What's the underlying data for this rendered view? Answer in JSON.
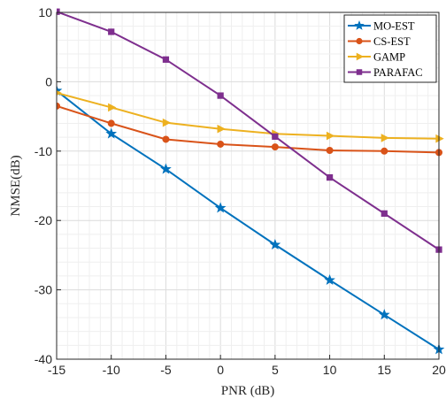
{
  "chart_data": {
    "type": "line",
    "title": "",
    "xlabel": "PNR (dB)",
    "ylabel": "NMSE(dB)",
    "xlim": [
      -15,
      20
    ],
    "ylim": [
      -40,
      10
    ],
    "x_ticks": [
      "-15",
      "-10",
      "-5",
      "0",
      "5",
      "10",
      "15",
      "20"
    ],
    "y_ticks": [
      "10",
      "0",
      "-10",
      "-20",
      "-30",
      "-40"
    ],
    "grid": true,
    "legend_position": "top-right",
    "x": [
      -15,
      -10,
      -5,
      0,
      5,
      10,
      15,
      20
    ],
    "series": [
      {
        "name": "MO-EST",
        "color": "#0072BD",
        "marker": "star",
        "values": [
          -1.3,
          -7.5,
          -12.6,
          -18.2,
          -23.5,
          -28.6,
          -33.6,
          -38.6
        ]
      },
      {
        "name": "CS-EST",
        "color": "#D95319",
        "marker": "circle",
        "values": [
          -3.5,
          -6.0,
          -8.3,
          -9.0,
          -9.4,
          -9.9,
          -10.0,
          -10.2
        ]
      },
      {
        "name": "GAMP",
        "color": "#EDB120",
        "marker": "triangle-right",
        "values": [
          -1.6,
          -3.7,
          -5.9,
          -6.8,
          -7.5,
          -7.8,
          -8.1,
          -8.2
        ]
      },
      {
        "name": "PARAFAC",
        "color": "#7E2F8E",
        "marker": "square",
        "values": [
          10.1,
          7.2,
          3.2,
          -2.0,
          -7.9,
          -13.8,
          -19.0,
          -24.2
        ]
      }
    ]
  }
}
